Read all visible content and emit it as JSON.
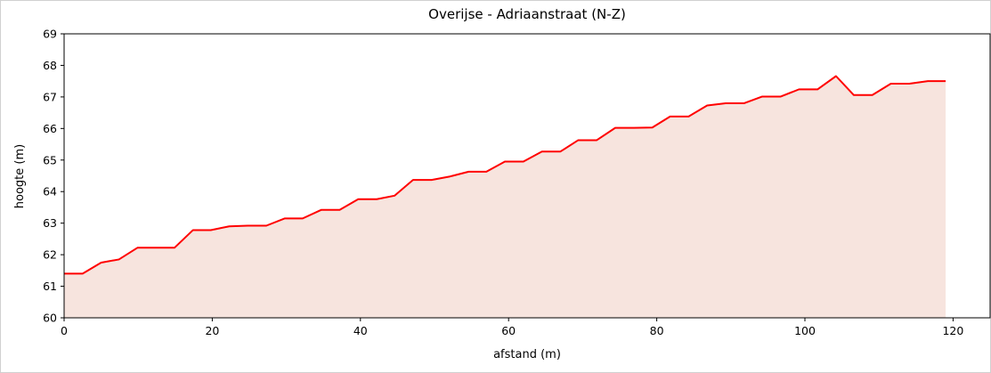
{
  "chart_data": {
    "type": "area",
    "title": "Overijse - Adriaanstraat (N-Z)",
    "x_label": "afstand (m)",
    "y_label": "hoogte (m)",
    "x": [
      0,
      2.5,
      5,
      7.4,
      9.9,
      12.4,
      14.9,
      17.4,
      19.8,
      22.3,
      24.8,
      27.3,
      29.8,
      32.2,
      34.7,
      37.2,
      39.7,
      42.2,
      44.6,
      47.1,
      49.6,
      52.1,
      54.6,
      57,
      59.5,
      62,
      64.5,
      67,
      69.4,
      71.9,
      74.4,
      76.9,
      79.4,
      81.8,
      84.3,
      86.8,
      89.3,
      91.8,
      94.2,
      96.7,
      99.2,
      101.7,
      104.2,
      106.6,
      109.1,
      111.6,
      114.1,
      116.6,
      119
    ],
    "series": [
      {
        "name": "hoogte",
        "color": "#ff0000",
        "fill": "#f7e4de",
        "values": [
          61.4,
          61.4,
          61.75,
          61.85,
          62.22,
          62.22,
          62.22,
          62.78,
          62.78,
          62.9,
          62.92,
          62.92,
          63.15,
          63.15,
          63.42,
          63.42,
          63.76,
          63.76,
          63.87,
          64.37,
          64.37,
          64.48,
          64.63,
          64.63,
          64.95,
          64.95,
          65.27,
          65.27,
          65.63,
          65.63,
          66.02,
          66.02,
          66.03,
          66.38,
          66.38,
          66.73,
          66.8,
          66.8,
          67.01,
          67.01,
          67.24,
          67.24,
          67.66,
          67.06,
          67.06,
          67.42,
          67.42,
          67.5,
          67.5
        ]
      }
    ],
    "xlim": [
      0,
      125
    ],
    "xticks": [
      0,
      20,
      40,
      60,
      80,
      100,
      120
    ],
    "ylim": [
      60,
      69
    ],
    "yticks": [
      60,
      61,
      62,
      63,
      64,
      65,
      66,
      67,
      68,
      69
    ]
  }
}
